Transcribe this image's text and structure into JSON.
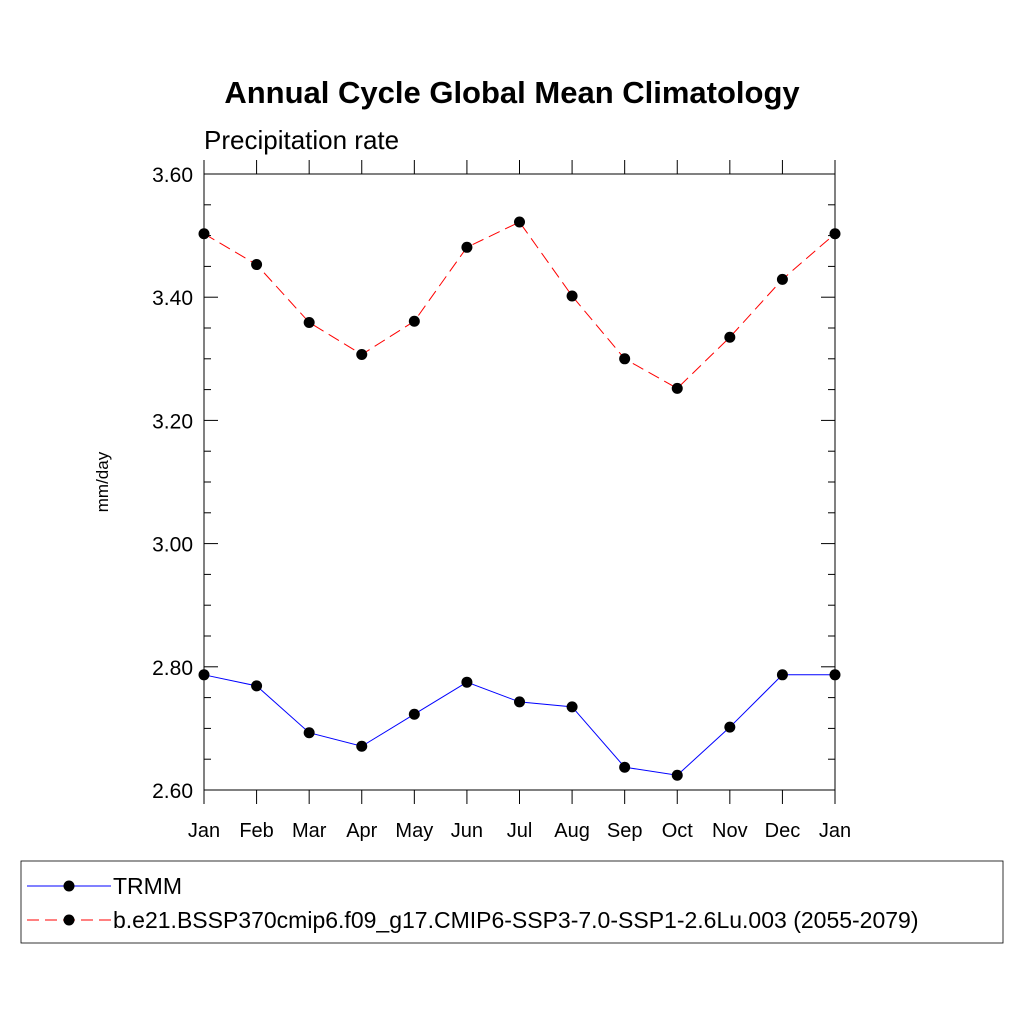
{
  "chart_data": {
    "type": "line",
    "title": "Annual Cycle Global Mean Climatology",
    "subtitle": "Precipitation rate",
    "ylabel": "mm/day",
    "xlabel": "",
    "categories": [
      "Jan",
      "Feb",
      "Mar",
      "Apr",
      "May",
      "Jun",
      "Jul",
      "Aug",
      "Sep",
      "Oct",
      "Nov",
      "Dec",
      "Jan"
    ],
    "ylim": [
      2.6,
      3.6
    ],
    "y_ticks": [
      "2.60",
      "2.80",
      "3.00",
      "3.20",
      "3.40",
      "3.60"
    ],
    "y_tick_values": [
      2.6,
      2.8,
      3.0,
      3.2,
      3.4,
      3.6
    ],
    "legend_position": "bottom",
    "grid": false,
    "series": [
      {
        "name": "TRMM",
        "color": "#0000ff",
        "line_style": "solid",
        "marker": "circle",
        "values": [
          2.787,
          2.769,
          2.693,
          2.671,
          2.723,
          2.775,
          2.743,
          2.735,
          2.637,
          2.624,
          2.702,
          2.787,
          2.787
        ]
      },
      {
        "name": "b.e21.BSSP370cmip6.f09_g17.CMIP6-SSP3-7.0-SSP1-2.6Lu.003 (2055-2079)",
        "color": "#ff0000",
        "line_style": "dashed",
        "marker": "circle",
        "values": [
          3.503,
          3.453,
          3.359,
          3.307,
          3.361,
          3.481,
          3.522,
          3.402,
          3.3,
          3.252,
          3.335,
          3.429,
          3.503
        ]
      }
    ]
  }
}
